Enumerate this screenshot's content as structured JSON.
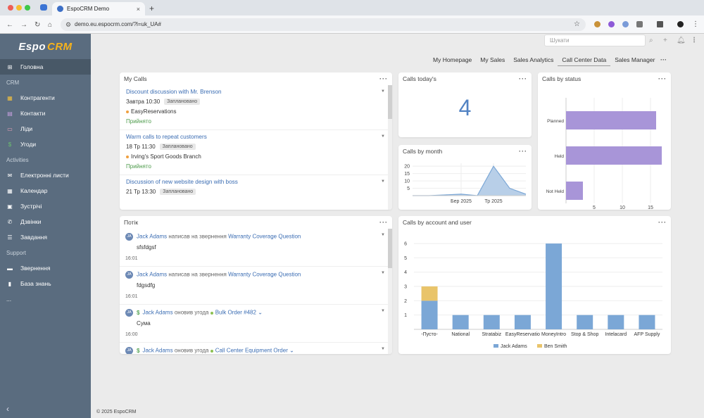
{
  "browser": {
    "tab_title": "EspoCRM Demo",
    "new_tab": "+",
    "close": "×",
    "url": "demo.eu.espocrm.com/?l=uk_UA#"
  },
  "sidebar": {
    "logo_left": "Espo",
    "logo_right": "CRM",
    "items": [
      {
        "kind": "item",
        "label": "Головна",
        "icon": "home-grid-icon",
        "active": true
      },
      {
        "kind": "group",
        "label": "CRM"
      },
      {
        "kind": "item",
        "label": "Контрагенти",
        "icon": "building-icon"
      },
      {
        "kind": "item",
        "label": "Контакти",
        "icon": "contact-card-icon"
      },
      {
        "kind": "item",
        "label": "Ліди",
        "icon": "id-card-icon"
      },
      {
        "kind": "item",
        "label": "Угоди",
        "icon": "dollar-icon"
      },
      {
        "kind": "group",
        "label": "Activities"
      },
      {
        "kind": "item",
        "label": "Електронні листи",
        "icon": "envelope-icon"
      },
      {
        "kind": "item",
        "label": "Календар",
        "icon": "calendar-icon"
      },
      {
        "kind": "item",
        "label": "Зустрічі",
        "icon": "meeting-icon"
      },
      {
        "kind": "item",
        "label": "Дзвінки",
        "icon": "phone-icon"
      },
      {
        "kind": "item",
        "label": "Завдання",
        "icon": "tasks-icon"
      },
      {
        "kind": "group",
        "label": "Support"
      },
      {
        "kind": "item",
        "label": "Звернення",
        "icon": "briefcase-icon"
      },
      {
        "kind": "item",
        "label": "База знань",
        "icon": "book-icon"
      },
      {
        "kind": "item",
        "label": "...",
        "icon": "more-icon"
      }
    ]
  },
  "header": {
    "search_placeholder": "Шукати",
    "tabs": [
      "My Homepage",
      "My Sales",
      "Sales Analytics",
      "Call Center Data",
      "Sales Manager"
    ],
    "active_tab": "Call Center Data",
    "more": "···"
  },
  "my_calls": {
    "title": "My Calls",
    "menu": "···",
    "items": [
      {
        "title": "Discount discussion with Mr. Brenson",
        "date": "Завтра 10:30",
        "badge": "Заплановано",
        "account": "EasyReservations",
        "status": "Прийнято"
      },
      {
        "title": "Warm calls to repeat customers",
        "date": "18 Тр 11:30",
        "badge": "Заплановано",
        "account": "Irving's Sport Goods Branch",
        "status": "Прийнято"
      },
      {
        "title": "Discussion of new website design with boss",
        "date": "21 Тр 13:30",
        "badge": "Заплановано",
        "account": "",
        "status": ""
      }
    ]
  },
  "calls_today": {
    "title": "Calls today's",
    "value": "4",
    "menu": "···"
  },
  "calls_by_status": {
    "title": "Calls by status",
    "menu": "···"
  },
  "calls_by_month": {
    "title": "Calls by month",
    "menu": "···"
  },
  "stream": {
    "title": "Потік",
    "menu": "···",
    "items": [
      {
        "avatar": "JA",
        "user": "Jack Adams",
        "verb": "написав на звернення",
        "target": "Warranty Coverage Question",
        "body": "sfsfdgsf",
        "time": "16:01",
        "deal": false
      },
      {
        "avatar": "JA",
        "user": "Jack Adams",
        "verb": "написав на звернення",
        "target": "Warranty Coverage Question",
        "body": "fdgsdfg",
        "time": "16:01",
        "deal": false
      },
      {
        "avatar": "JA",
        "user": "Jack Adams",
        "verb": "оновив угода",
        "target": "Bulk Order #482",
        "body": "Сума",
        "time": "16:00",
        "deal": true
      },
      {
        "avatar": "JA",
        "user": "Jack Adams",
        "verb": "оновив угода",
        "target": "Call Center Equipment Order",
        "body": "",
        "time": "",
        "deal": true
      }
    ]
  },
  "calls_by_account": {
    "title": "Calls by account and user",
    "menu": "···"
  },
  "footer": "© 2025 EspoCRM",
  "colors": {
    "purple": "#a895d8",
    "blue": "#7ba7d6",
    "gold": "#e9c46a",
    "link": "#3b6db3",
    "sidebar": "#5a6c7f"
  },
  "chart_data": [
    {
      "type": "bar",
      "orientation": "horizontal",
      "title": "Calls by status",
      "categories": [
        "Planned",
        "Held",
        "Not Held"
      ],
      "values": [
        16,
        17,
        3
      ],
      "xticks": [
        5,
        10,
        15
      ],
      "xlim": [
        0,
        17.5
      ]
    },
    {
      "type": "area",
      "title": "Calls by month",
      "x": [
        "",
        "",
        "",
        "Бер 2025",
        "",
        "Тр 2025",
        "",
        ""
      ],
      "x_tick_labels": [
        "Бер 2025",
        "Тр 2025"
      ],
      "values": [
        0,
        0,
        0.5,
        1,
        0,
        20,
        5,
        1
      ],
      "yticks": [
        5,
        10,
        15,
        20
      ],
      "ylim": [
        0,
        22
      ]
    },
    {
      "type": "bar",
      "stacked": true,
      "title": "Calls by account and user",
      "categories": [
        "-Пусто-",
        "National",
        "Stratabiz",
        "EasyReservatio",
        "MoneyIntro",
        "Stop & Shop",
        "Intelacard",
        "AFP Supply"
      ],
      "series": [
        {
          "name": "Jack Adams",
          "values": [
            2,
            1,
            1,
            1,
            6,
            1,
            1,
            1
          ]
        },
        {
          "name": "Ben Smith",
          "values": [
            1,
            0,
            0,
            0,
            0,
            0,
            0,
            0
          ]
        }
      ],
      "yticks": [
        1,
        2,
        3,
        4,
        5,
        6
      ],
      "ylim": [
        0,
        6.2
      ]
    }
  ]
}
